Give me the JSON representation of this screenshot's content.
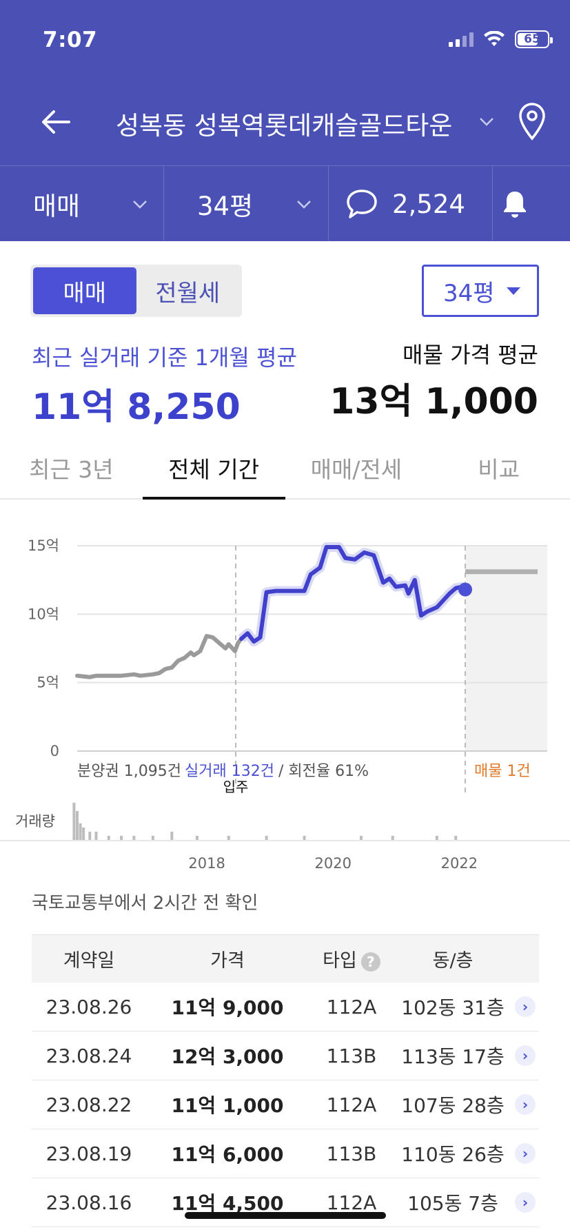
{
  "status": {
    "time": "7:07",
    "battery": "65"
  },
  "nav": {
    "title": "성복동 성복역롯데캐슬골드타운"
  },
  "filters": [
    {
      "label": "매매"
    },
    {
      "label": "34평"
    },
    {
      "label": "2,524"
    }
  ],
  "toggle": {
    "options": [
      "매매",
      "전월세"
    ],
    "active": 0
  },
  "type_select": {
    "value": "34평"
  },
  "summary": {
    "recent_label": "최근 실거래 기준 1개월 평균",
    "recent_price": "11억 8,250",
    "listing_label": "매물 가격 평균",
    "listing_price": "13억 1,000"
  },
  "tabs": [
    "최근 3년",
    "전체 기간",
    "매매/전세",
    "비교"
  ],
  "chart_stats": {
    "presale": "분양권 1,095건",
    "transactions": "실거래 132건",
    "turnover": " / 회전율 61%",
    "movein": "입주",
    "listings": "매물 1건",
    "volume_label": "거래량"
  },
  "chart_data": {
    "type": "line",
    "y_ticks": [
      "15억",
      "10억",
      "5억",
      "0"
    ],
    "x_ticks": [
      "2018",
      "2020",
      "2022"
    ],
    "ylim": [
      0,
      15
    ],
    "xlim": [
      2016.6,
      2023.99
    ],
    "grid": true,
    "series": [
      {
        "color": "#9a9a9a",
        "points": [
          [
            2016.6,
            5.5
          ],
          [
            2016.8,
            5.4
          ],
          [
            2016.9,
            5.5
          ],
          [
            2017.1,
            5.5
          ],
          [
            2017.3,
            5.5
          ],
          [
            2017.5,
            5.6
          ],
          [
            2017.6,
            5.5
          ],
          [
            2017.8,
            5.6
          ],
          [
            2017.9,
            5.7
          ],
          [
            2018.0,
            6.0
          ],
          [
            2018.1,
            6.1
          ],
          [
            2018.2,
            6.6
          ],
          [
            2018.3,
            6.8
          ],
          [
            2018.4,
            7.2
          ],
          [
            2018.45,
            7.0
          ],
          [
            2018.55,
            7.3
          ],
          [
            2018.65,
            8.4
          ],
          [
            2018.75,
            8.3
          ],
          [
            2018.85,
            7.9
          ],
          [
            2018.95,
            7.5
          ],
          [
            2019.0,
            7.8
          ],
          [
            2019.1,
            7.3
          ],
          [
            2019.15,
            7.9
          ],
          [
            2019.2,
            8.2
          ]
        ]
      },
      {
        "color": "#4040cc",
        "points": [
          [
            2019.2,
            8.2
          ],
          [
            2019.3,
            8.6
          ],
          [
            2019.4,
            8.0
          ],
          [
            2019.5,
            8.3
          ],
          [
            2019.6,
            11.6
          ],
          [
            2019.75,
            11.7
          ],
          [
            2019.9,
            11.7
          ],
          [
            2020.0,
            11.7
          ],
          [
            2020.2,
            11.7
          ],
          [
            2020.3,
            12.9
          ],
          [
            2020.45,
            13.4
          ],
          [
            2020.55,
            14.9
          ],
          [
            2020.75,
            14.9
          ],
          [
            2020.85,
            14.1
          ],
          [
            2021.0,
            14.0
          ],
          [
            2021.15,
            14.5
          ],
          [
            2021.3,
            14.3
          ],
          [
            2021.45,
            12.3
          ],
          [
            2021.55,
            12.6
          ],
          [
            2021.65,
            12.0
          ],
          [
            2021.8,
            12.1
          ],
          [
            2021.85,
            11.5
          ],
          [
            2021.95,
            12.5
          ],
          [
            2022.05,
            9.9
          ],
          [
            2022.15,
            10.2
          ],
          [
            2022.3,
            10.5
          ],
          [
            2022.4,
            11.0
          ],
          [
            2022.5,
            11.5
          ],
          [
            2022.6,
            11.9
          ],
          [
            2022.7,
            12.0
          ],
          [
            2022.75,
            11.8
          ]
        ]
      }
    ],
    "last_point": [
      2022.75,
      11.8
    ],
    "listing_price_line": 13.1,
    "movein_date": 2019.25,
    "current_date": 2022.75,
    "volume": [
      [
        2016.55,
        9
      ],
      [
        2016.6,
        7
      ],
      [
        2016.65,
        4
      ],
      [
        2016.7,
        3
      ],
      [
        2016.8,
        2
      ],
      [
        2016.9,
        2
      ],
      [
        2017.1,
        1
      ],
      [
        2017.3,
        1
      ],
      [
        2017.5,
        1
      ],
      [
        2017.8,
        1
      ],
      [
        2018.1,
        2
      ],
      [
        2018.5,
        1
      ],
      [
        2019.0,
        1
      ],
      [
        2019.6,
        1
      ],
      [
        2020.2,
        1
      ],
      [
        2021.1,
        1
      ],
      [
        2021.6,
        1
      ],
      [
        2022.3,
        1
      ],
      [
        2022.6,
        1
      ]
    ]
  }
}
